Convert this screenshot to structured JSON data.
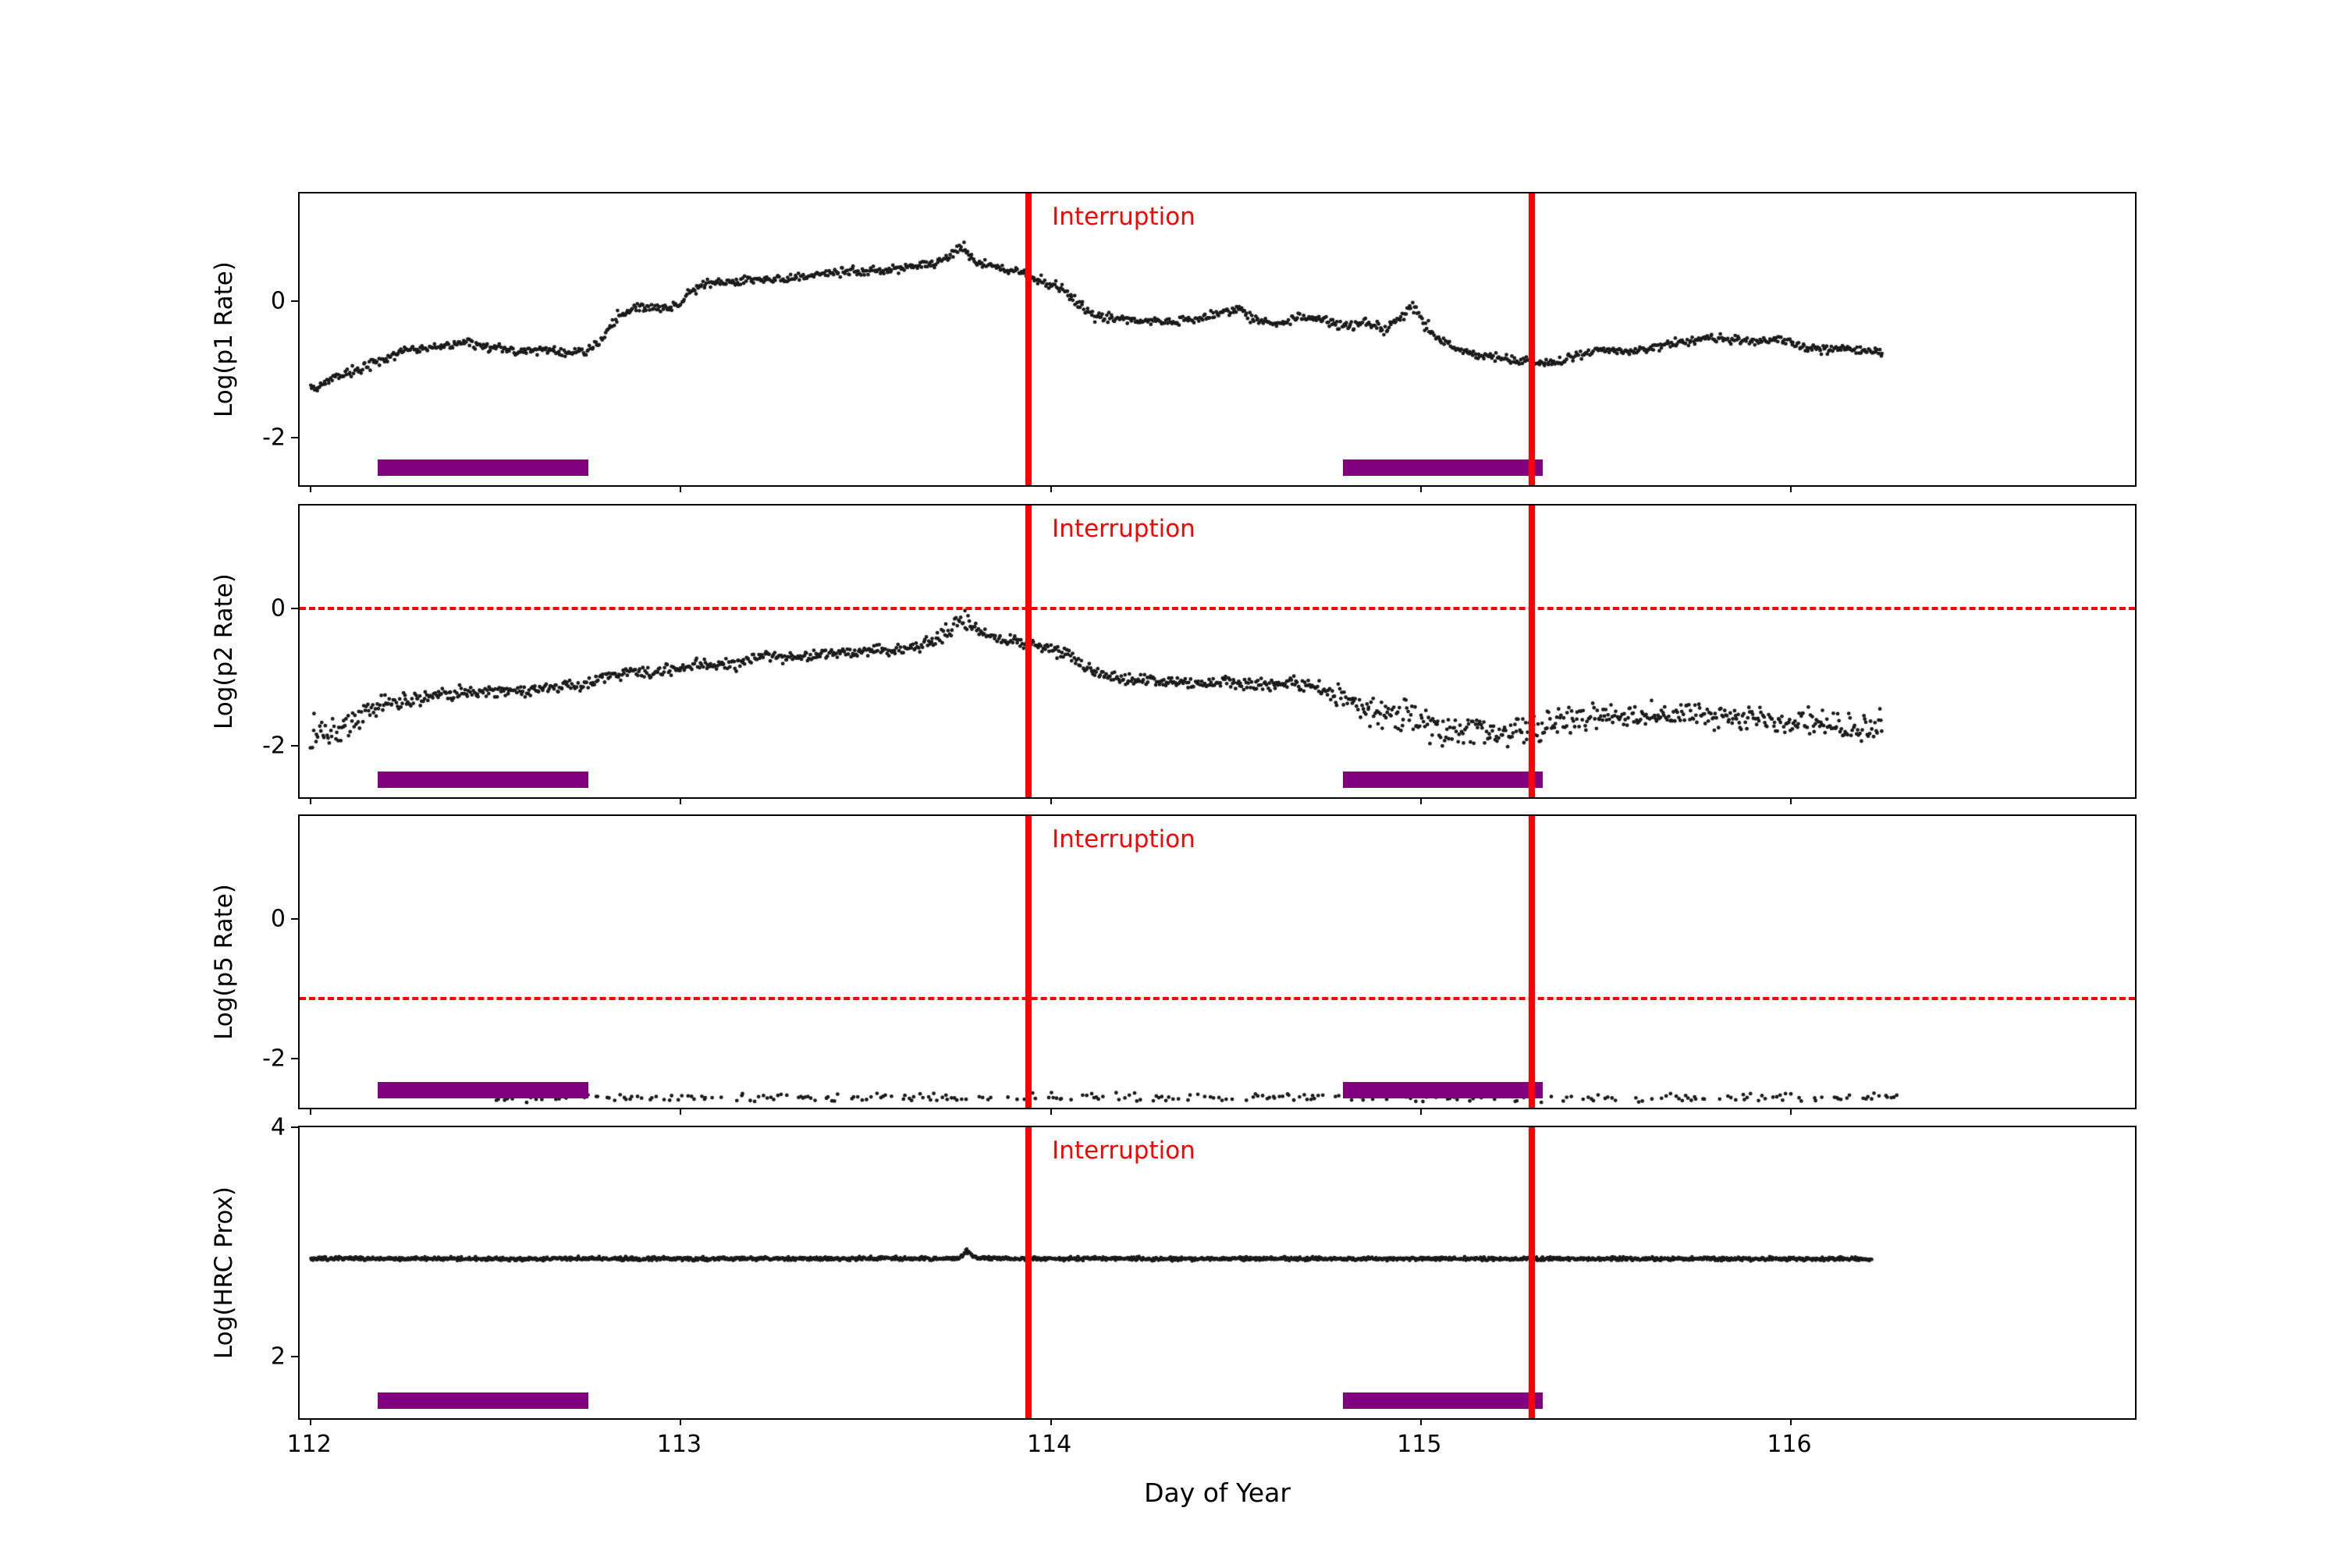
{
  "figure": {
    "background": "#ffffff",
    "axis_color": "#000000"
  },
  "chart_data": {
    "type": "scatter",
    "xlabel": "Day of Year",
    "xlim": [
      111.97,
      116.93
    ],
    "xticks": [
      {
        "value": 112,
        "label": "112"
      },
      {
        "value": 113,
        "label": "113"
      },
      {
        "value": 114,
        "label": "114"
      },
      {
        "value": 115,
        "label": "115"
      },
      {
        "value": 116,
        "label": "116"
      }
    ],
    "interruption": {
      "label": "Interruption",
      "color": "#ff0000",
      "x_positions": [
        113.94,
        115.3
      ]
    },
    "bars": {
      "color": "#800080",
      "intervals": [
        [
          112.18,
          112.75
        ],
        [
          114.79,
          115.33
        ]
      ]
    },
    "panels": [
      {
        "ylabel": "Log(p1 Rate)",
        "ylim": [
          -2.7,
          1.58
        ],
        "yticks": [
          {
            "value": 0,
            "label": "0"
          },
          {
            "value": -2,
            "label": "-2"
          }
        ],
        "series": {
          "color": "#1a1a1a",
          "density": 300,
          "dot_radius": 2.4,
          "drop": 0,
          "anchors": [
            [
              112.0,
              -1.28,
              0.05
            ],
            [
              112.05,
              -1.15,
              0.04
            ],
            [
              112.1,
              -1.06,
              0.04
            ],
            [
              112.16,
              -0.93,
              0.035
            ],
            [
              112.22,
              -0.8,
              0.03
            ],
            [
              112.28,
              -0.71,
              0.03
            ],
            [
              112.35,
              -0.66,
              0.03
            ],
            [
              112.42,
              -0.62,
              0.03
            ],
            [
              112.5,
              -0.68,
              0.03
            ],
            [
              112.57,
              -0.74,
              0.03
            ],
            [
              112.63,
              -0.71,
              0.03
            ],
            [
              112.69,
              -0.77,
              0.03
            ],
            [
              112.75,
              -0.72,
              0.03
            ],
            [
              112.79,
              -0.55,
              0.035
            ],
            [
              112.83,
              -0.22,
              0.04
            ],
            [
              112.87,
              -0.12,
              0.035
            ],
            [
              112.93,
              -0.1,
              0.03
            ],
            [
              112.99,
              -0.07,
              0.03
            ],
            [
              113.03,
              0.15,
              0.035
            ],
            [
              113.07,
              0.28,
              0.03
            ],
            [
              113.13,
              0.26,
              0.03
            ],
            [
              113.19,
              0.33,
              0.03
            ],
            [
              113.25,
              0.3,
              0.03
            ],
            [
              113.31,
              0.35,
              0.03
            ],
            [
              113.39,
              0.41,
              0.03
            ],
            [
              113.47,
              0.44,
              0.03
            ],
            [
              113.54,
              0.45,
              0.03
            ],
            [
              113.6,
              0.49,
              0.03
            ],
            [
              113.66,
              0.54,
              0.03
            ],
            [
              113.71,
              0.6,
              0.035
            ],
            [
              113.745,
              0.73,
              0.05
            ],
            [
              113.765,
              0.77,
              0.05
            ],
            [
              113.79,
              0.6,
              0.04
            ],
            [
              113.85,
              0.49,
              0.035
            ],
            [
              113.91,
              0.44,
              0.03
            ],
            [
              113.97,
              0.3,
              0.035
            ],
            [
              114.03,
              0.18,
              0.04
            ],
            [
              114.07,
              0.0,
              0.04
            ],
            [
              114.11,
              -0.2,
              0.04
            ],
            [
              114.17,
              -0.26,
              0.03
            ],
            [
              114.25,
              -0.29,
              0.03
            ],
            [
              114.33,
              -0.31,
              0.03
            ],
            [
              114.41,
              -0.26,
              0.03
            ],
            [
              114.47,
              -0.15,
              0.035
            ],
            [
              114.51,
              -0.11,
              0.035
            ],
            [
              114.55,
              -0.28,
              0.035
            ],
            [
              114.61,
              -0.34,
              0.03
            ],
            [
              114.67,
              -0.24,
              0.03
            ],
            [
              114.73,
              -0.26,
              0.03
            ],
            [
              114.79,
              -0.38,
              0.035
            ],
            [
              114.85,
              -0.31,
              0.04
            ],
            [
              114.91,
              -0.43,
              0.045
            ],
            [
              114.95,
              -0.22,
              0.05
            ],
            [
              114.98,
              -0.08,
              0.05
            ],
            [
              115.01,
              -0.35,
              0.05
            ],
            [
              115.05,
              -0.57,
              0.04
            ],
            [
              115.09,
              -0.68,
              0.035
            ],
            [
              115.15,
              -0.77,
              0.03
            ],
            [
              115.21,
              -0.83,
              0.03
            ],
            [
              115.27,
              -0.87,
              0.03
            ],
            [
              115.33,
              -0.92,
              0.03
            ],
            [
              115.38,
              -0.88,
              0.03
            ],
            [
              115.43,
              -0.78,
              0.03
            ],
            [
              115.49,
              -0.71,
              0.03
            ],
            [
              115.55,
              -0.75,
              0.03
            ],
            [
              115.61,
              -0.7,
              0.03
            ],
            [
              115.67,
              -0.64,
              0.03
            ],
            [
              115.73,
              -0.58,
              0.03
            ],
            [
              115.79,
              -0.53,
              0.03
            ],
            [
              115.85,
              -0.56,
              0.03
            ],
            [
              115.91,
              -0.6,
              0.03
            ],
            [
              115.97,
              -0.56,
              0.03
            ],
            [
              116.03,
              -0.68,
              0.03
            ],
            [
              116.09,
              -0.71,
              0.03
            ],
            [
              116.15,
              -0.7,
              0.03
            ],
            [
              116.21,
              -0.74,
              0.03
            ],
            [
              116.25,
              -0.77,
              0.03
            ]
          ]
        }
      },
      {
        "ylabel": "Log(p2 Rate)",
        "ylim": [
          -2.75,
          1.5
        ],
        "yticks": [
          {
            "value": 0,
            "label": "0"
          },
          {
            "value": -2,
            "label": "-2"
          }
        ],
        "hline": {
          "y": 0,
          "color": "#ff0000",
          "style": "dashed"
        },
        "series": {
          "color": "#1a1a1a",
          "density": 300,
          "dot_radius": 2.4,
          "drop": 0,
          "anchors": [
            [
              112.0,
              -1.88,
              0.13
            ],
            [
              112.05,
              -1.78,
              0.12
            ],
            [
              112.1,
              -1.68,
              0.1
            ],
            [
              112.15,
              -1.52,
              0.08
            ],
            [
              112.2,
              -1.4,
              0.06
            ],
            [
              112.26,
              -1.34,
              0.05
            ],
            [
              112.32,
              -1.28,
              0.045
            ],
            [
              112.38,
              -1.24,
              0.04
            ],
            [
              112.44,
              -1.2,
              0.04
            ],
            [
              112.5,
              -1.2,
              0.04
            ],
            [
              112.58,
              -1.2,
              0.04
            ],
            [
              112.66,
              -1.16,
              0.04
            ],
            [
              112.74,
              -1.12,
              0.04
            ],
            [
              112.8,
              -0.97,
              0.04
            ],
            [
              112.86,
              -0.92,
              0.04
            ],
            [
              112.92,
              -0.95,
              0.04
            ],
            [
              112.98,
              -0.9,
              0.04
            ],
            [
              113.04,
              -0.82,
              0.04
            ],
            [
              113.1,
              -0.85,
              0.04
            ],
            [
              113.16,
              -0.8,
              0.04
            ],
            [
              113.22,
              -0.7,
              0.04
            ],
            [
              113.28,
              -0.73,
              0.04
            ],
            [
              113.34,
              -0.69,
              0.04
            ],
            [
              113.4,
              -0.66,
              0.04
            ],
            [
              113.46,
              -0.63,
              0.04
            ],
            [
              113.52,
              -0.61,
              0.04
            ],
            [
              113.58,
              -0.6,
              0.04
            ],
            [
              113.64,
              -0.56,
              0.04
            ],
            [
              113.7,
              -0.42,
              0.05
            ],
            [
              113.74,
              -0.25,
              0.06
            ],
            [
              113.77,
              -0.16,
              0.06
            ],
            [
              113.8,
              -0.35,
              0.05
            ],
            [
              113.86,
              -0.44,
              0.04
            ],
            [
              113.92,
              -0.48,
              0.04
            ],
            [
              113.98,
              -0.55,
              0.04
            ],
            [
              114.04,
              -0.65,
              0.05
            ],
            [
              114.1,
              -0.88,
              0.05
            ],
            [
              114.16,
              -1.0,
              0.04
            ],
            [
              114.24,
              -1.04,
              0.04
            ],
            [
              114.32,
              -1.06,
              0.04
            ],
            [
              114.4,
              -1.1,
              0.045
            ],
            [
              114.48,
              -1.05,
              0.045
            ],
            [
              114.56,
              -1.13,
              0.05
            ],
            [
              114.64,
              -1.1,
              0.05
            ],
            [
              114.72,
              -1.15,
              0.06
            ],
            [
              114.78,
              -1.28,
              0.07
            ],
            [
              114.84,
              -1.42,
              0.1
            ],
            [
              114.9,
              -1.58,
              0.12
            ],
            [
              114.96,
              -1.55,
              0.12
            ],
            [
              115.02,
              -1.72,
              0.12
            ],
            [
              115.08,
              -1.8,
              0.11
            ],
            [
              115.14,
              -1.78,
              0.1
            ],
            [
              115.2,
              -1.82,
              0.1
            ],
            [
              115.26,
              -1.75,
              0.1
            ],
            [
              115.32,
              -1.78,
              0.1
            ],
            [
              115.38,
              -1.62,
              0.09
            ],
            [
              115.46,
              -1.58,
              0.09
            ],
            [
              115.54,
              -1.58,
              0.09
            ],
            [
              115.62,
              -1.54,
              0.09
            ],
            [
              115.7,
              -1.58,
              0.09
            ],
            [
              115.78,
              -1.55,
              0.09
            ],
            [
              115.86,
              -1.58,
              0.09
            ],
            [
              115.94,
              -1.62,
              0.09
            ],
            [
              116.02,
              -1.66,
              0.09
            ],
            [
              116.1,
              -1.7,
              0.1
            ],
            [
              116.18,
              -1.74,
              0.1
            ],
            [
              116.25,
              -1.7,
              0.1
            ]
          ]
        }
      },
      {
        "ylabel": "Log(p5 Rate)",
        "ylim": [
          -2.7,
          1.48
        ],
        "yticks": [
          {
            "value": 0,
            "label": "0"
          },
          {
            "value": -2,
            "label": "-2"
          }
        ],
        "hline": {
          "y": -1.13,
          "color": "#ff0000",
          "style": "dashed"
        },
        "series": {
          "color": "#1a1a1a",
          "density": 130,
          "dot_radius": 2.4,
          "drop": 0.45,
          "anchors": [
            [
              112.5,
              -2.56,
              0.03
            ],
            [
              113.0,
              -2.555,
              0.03
            ],
            [
              113.5,
              -2.55,
              0.032
            ],
            [
              114.0,
              -2.55,
              0.035
            ],
            [
              114.5,
              -2.555,
              0.03
            ],
            [
              115.0,
              -2.55,
              0.035
            ],
            [
              115.5,
              -2.555,
              0.03
            ],
            [
              116.0,
              -2.55,
              0.03
            ],
            [
              116.3,
              -2.555,
              0.03
            ]
          ]
        }
      },
      {
        "ylabel": "Log(HRC Prox)",
        "ylim": [
          1.46,
          4.0
        ],
        "yticks": [
          {
            "value": 4,
            "label": "4"
          },
          {
            "value": 2,
            "label": "2"
          }
        ],
        "series": {
          "color": "#1a1a1a",
          "density": 560,
          "dot_radius": 2.2,
          "drop": 0,
          "anchors": [
            [
              112.0,
              2.854,
              0.008
            ],
            [
              112.6,
              2.852,
              0.008
            ],
            [
              113.2,
              2.853,
              0.008
            ],
            [
              113.7,
              2.854,
              0.008
            ],
            [
              113.755,
              2.858,
              0.009
            ],
            [
              113.775,
              2.925,
              0.012
            ],
            [
              113.795,
              2.862,
              0.009
            ],
            [
              113.85,
              2.854,
              0.008
            ],
            [
              114.4,
              2.852,
              0.008
            ],
            [
              115.0,
              2.853,
              0.008
            ],
            [
              115.6,
              2.852,
              0.008
            ],
            [
              116.22,
              2.85,
              0.008
            ]
          ]
        }
      }
    ]
  }
}
